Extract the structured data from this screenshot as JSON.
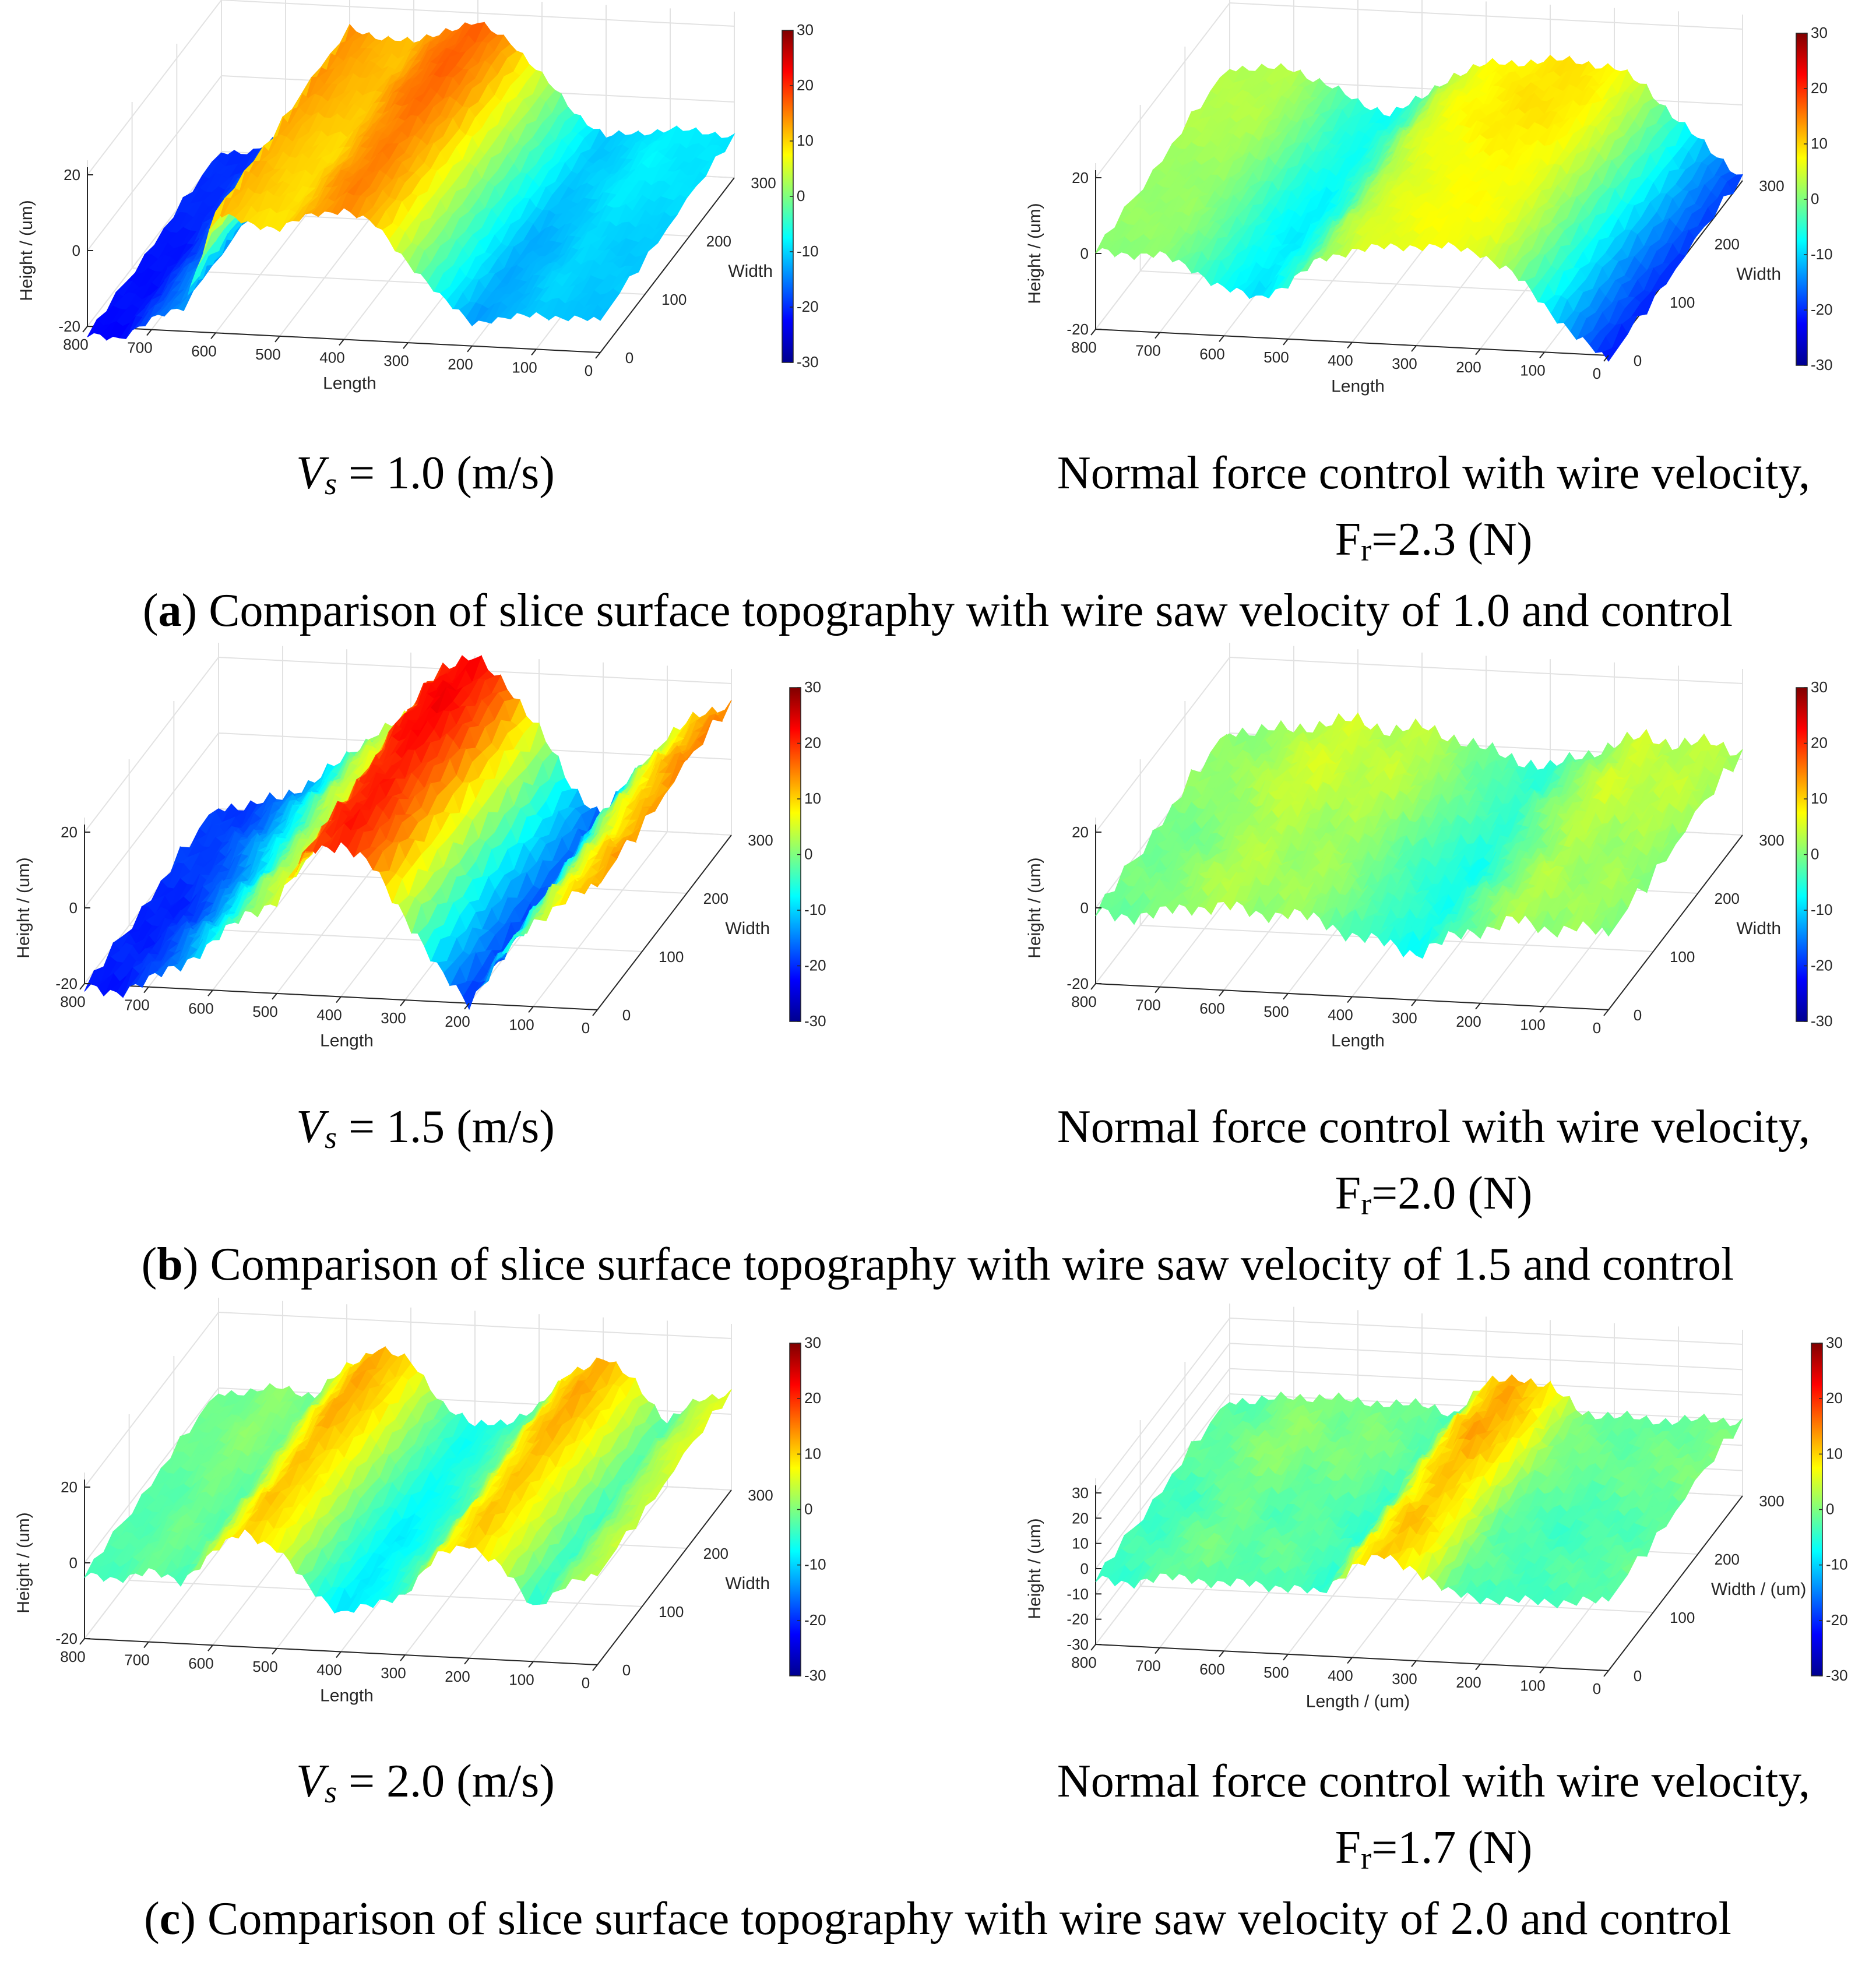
{
  "colormap": [
    "#00008f",
    "#0000ff",
    "#007fff",
    "#00ffff",
    "#7fff7f",
    "#ffff00",
    "#ff7f00",
    "#ff0000",
    "#800000"
  ],
  "chart_data": [
    {
      "type": "surface3d",
      "panel": "a",
      "position": "left",
      "title": "",
      "xlabel": "Length",
      "ylabel": "Width",
      "zlabel": "Height / (um)",
      "xlim": [
        0,
        800
      ],
      "ylim": [
        0,
        300
      ],
      "zlim": [
        -20,
        20
      ],
      "clim": [
        -30,
        30
      ],
      "x_ticks": [
        800,
        700,
        600,
        500,
        400,
        300,
        200,
        100,
        0
      ],
      "y_ticks": [
        0,
        100,
        200,
        300
      ],
      "z_ticks": [
        20,
        0,
        -20
      ],
      "colorbar_ticks": [
        30,
        20,
        10,
        0,
        -10,
        -20,
        -30
      ],
      "profile_x": [
        0,
        50,
        100,
        150,
        200,
        250,
        300,
        350,
        400,
        450,
        500,
        550,
        600,
        650,
        700,
        750
      ],
      "profile_z": [
        -10,
        -10,
        -9,
        -11,
        -12,
        -6,
        3,
        12,
        16,
        14,
        10,
        11,
        13,
        -12,
        -16,
        -21
      ],
      "noise": 0.8
    },
    {
      "type": "surface3d",
      "panel": "a",
      "position": "right",
      "title": "",
      "xlabel": "Length",
      "ylabel": "Width",
      "zlabel": "Height / (um)",
      "xlim": [
        0,
        800
      ],
      "ylim": [
        0,
        300
      ],
      "zlim": [
        -20,
        20
      ],
      "clim": [
        -30,
        30
      ],
      "x_ticks": [
        800,
        700,
        600,
        500,
        400,
        300,
        200,
        100,
        0
      ],
      "y_ticks": [
        0,
        100,
        200,
        300
      ],
      "z_ticks": [
        20,
        0,
        -20
      ],
      "colorbar_ticks": [
        30,
        20,
        10,
        0,
        -10,
        -20,
        -30
      ],
      "profile_x": [
        0,
        50,
        100,
        150,
        200,
        250,
        300,
        350,
        400,
        450,
        500,
        550,
        600,
        650,
        700,
        750
      ],
      "profile_z": [
        -20,
        -14,
        -6,
        2,
        7,
        8,
        8,
        7,
        6,
        3,
        -4,
        -8,
        -6,
        -1,
        2,
        2
      ],
      "noise": 1.0
    },
    {
      "type": "surface3d",
      "panel": "b",
      "position": "left",
      "title": "",
      "xlabel": "Length",
      "ylabel": "Width",
      "zlabel": "Height / (um)",
      "xlim": [
        0,
        800
      ],
      "ylim": [
        0,
        300
      ],
      "zlim": [
        -20,
        20
      ],
      "clim": [
        -30,
        30
      ],
      "x_ticks": [
        800,
        700,
        600,
        500,
        400,
        300,
        200,
        100,
        0
      ],
      "y_ticks": [
        0,
        100,
        200,
        300
      ],
      "z_ticks": [
        20,
        0,
        -20
      ],
      "colorbar_ticks": [
        30,
        20,
        10,
        0,
        -10,
        -20,
        -30
      ],
      "profile_x": [
        0,
        50,
        100,
        150,
        200,
        250,
        300,
        350,
        400,
        450,
        500,
        550,
        600,
        650,
        700,
        750
      ],
      "profile_z": [
        14,
        10,
        4,
        -6,
        -18,
        -10,
        4,
        16,
        22,
        20,
        6,
        2,
        -6,
        -12,
        -17,
        -20
      ],
      "noise": 1.4
    },
    {
      "type": "surface3d",
      "panel": "b",
      "position": "right",
      "title": "",
      "xlabel": "Length",
      "ylabel": "Width",
      "zlabel": "Height / (um)",
      "xlim": [
        0,
        800
      ],
      "ylim": [
        0,
        300
      ],
      "zlim": [
        -20,
        20
      ],
      "clim": [
        -30,
        30
      ],
      "x_ticks": [
        800,
        700,
        600,
        500,
        400,
        300,
        200,
        100,
        0
      ],
      "y_ticks": [
        0,
        100,
        200,
        300
      ],
      "z_ticks": [
        20,
        0,
        -20
      ],
      "colorbar_ticks": [
        30,
        20,
        10,
        0,
        -10,
        -20,
        -30
      ],
      "profile_x": [
        0,
        50,
        100,
        150,
        200,
        250,
        300,
        350,
        400,
        450,
        500,
        550,
        600,
        650,
        700,
        750
      ],
      "profile_z": [
        1,
        3,
        2,
        4,
        1,
        -2,
        -6,
        -4,
        -2,
        1,
        3,
        2,
        4,
        3,
        1,
        0
      ],
      "noise": 1.6
    },
    {
      "type": "surface3d",
      "panel": "c",
      "position": "left",
      "title": "",
      "xlabel": "Length",
      "ylabel": "Width",
      "zlabel": "Height / (um)",
      "xlim": [
        0,
        800
      ],
      "ylim": [
        0,
        300
      ],
      "zlim": [
        -20,
        20
      ],
      "clim": [
        -30,
        30
      ],
      "x_ticks": [
        800,
        700,
        600,
        500,
        400,
        300,
        200,
        100,
        0
      ],
      "y_ticks": [
        0,
        100,
        200,
        300
      ],
      "z_ticks": [
        20,
        0,
        -20
      ],
      "colorbar_ticks": [
        30,
        20,
        10,
        0,
        -10,
        -20,
        -30
      ],
      "profile_x": [
        0,
        50,
        100,
        150,
        200,
        250,
        300,
        350,
        400,
        450,
        500,
        550,
        600,
        650,
        700,
        750
      ],
      "profile_z": [
        5,
        2,
        -4,
        6,
        12,
        8,
        -2,
        -6,
        -8,
        -2,
        8,
        12,
        6,
        -2,
        0,
        -2
      ],
      "noise": 1.0
    },
    {
      "type": "surface3d",
      "panel": "c",
      "position": "right",
      "title": "",
      "xlabel": "Length / (um)",
      "ylabel": "Width / (um)",
      "zlabel": "Height / (um)",
      "xlim": [
        0,
        800
      ],
      "ylim": [
        0,
        300
      ],
      "zlim": [
        -30,
        30
      ],
      "clim": [
        -30,
        30
      ],
      "x_ticks": [
        800,
        700,
        600,
        500,
        400,
        300,
        200,
        100,
        0
      ],
      "y_ticks": [
        0,
        100,
        200,
        300
      ],
      "z_ticks": [
        30,
        20,
        10,
        0,
        -10,
        -20,
        -30
      ],
      "colorbar_ticks": [
        30,
        20,
        10,
        0,
        -10,
        -20,
        -30
      ],
      "profile_x": [
        0,
        50,
        100,
        150,
        200,
        250,
        300,
        350,
        400,
        450,
        500,
        550,
        600,
        650,
        700,
        750
      ],
      "profile_z": [
        -1,
        -2,
        -2,
        -3,
        -2,
        -1,
        8,
        12,
        8,
        -4,
        -2,
        -1,
        -2,
        0,
        -1,
        -3
      ],
      "noise": 1.8
    }
  ],
  "labels": {
    "a": {
      "left_prefix": "V",
      "left_sub": "s",
      "left_value": " = 1.0 (m/s)",
      "right_line1": "Normal force control with wire velocity,",
      "right_prefix": "F",
      "right_sub": "r",
      "right_value": "=2.3 (N)",
      "caption_letter": "a",
      "caption_text": "Comparison of slice surface topography with wire saw velocity of 1.0 and control"
    },
    "b": {
      "left_prefix": "V",
      "left_sub": "s",
      "left_value": " = 1.5 (m/s)",
      "right_line1": "Normal force control with wire velocity,",
      "right_prefix": "F",
      "right_sub": "r",
      "right_value": "=2.0 (N)",
      "caption_letter": "b",
      "caption_text": "Comparison of slice surface topography with wire saw velocity of 1.5 and control"
    },
    "c": {
      "left_prefix": "V",
      "left_sub": "s",
      "left_value": " = 2.0 (m/s)",
      "right_line1": "Normal force control with wire velocity,",
      "right_prefix": "F",
      "right_sub": "r",
      "right_value": "=1.7 (N)",
      "caption_letter": "c",
      "caption_text": "Comparison of slice surface topography with wire saw velocity of 2.0 and control"
    }
  },
  "paren_open": "(",
  "paren_close": ")"
}
